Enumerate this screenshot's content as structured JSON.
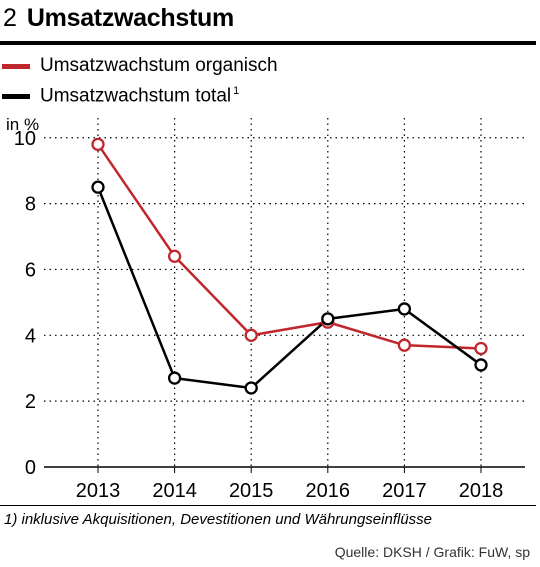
{
  "figure": {
    "number": "2",
    "title": "Umsatzwachstum"
  },
  "legend": [
    {
      "label": "Umsatzwachstum organisch",
      "footnote_mark": "",
      "color": "#c0272d"
    },
    {
      "label": "Umsatzwachstum total",
      "footnote_mark": "1",
      "color": "#000000"
    }
  ],
  "chart_data": {
    "type": "line",
    "ylabel": "in %",
    "xlabel": "",
    "categories": [
      "2013",
      "2014",
      "2015",
      "2016",
      "2017",
      "2018"
    ],
    "yticks": [
      0,
      2,
      4,
      6,
      8,
      10
    ],
    "ylim": [
      0,
      10.6
    ],
    "grid": "dotted",
    "series": [
      {
        "name": "Umsatzwachstum organisch",
        "color": "#c0272d",
        "values": [
          9.8,
          6.4,
          4.0,
          4.4,
          3.7,
          3.6
        ]
      },
      {
        "name": "Umsatzwachstum total",
        "color": "#000000",
        "values": [
          8.5,
          2.7,
          2.4,
          4.5,
          4.8,
          3.1
        ]
      }
    ]
  },
  "footnote": "1) inklusive Akquisitionen, Devestitionen und Währungseinflüsse",
  "source": "Quelle: DKSH / Grafik: FuW, sp"
}
